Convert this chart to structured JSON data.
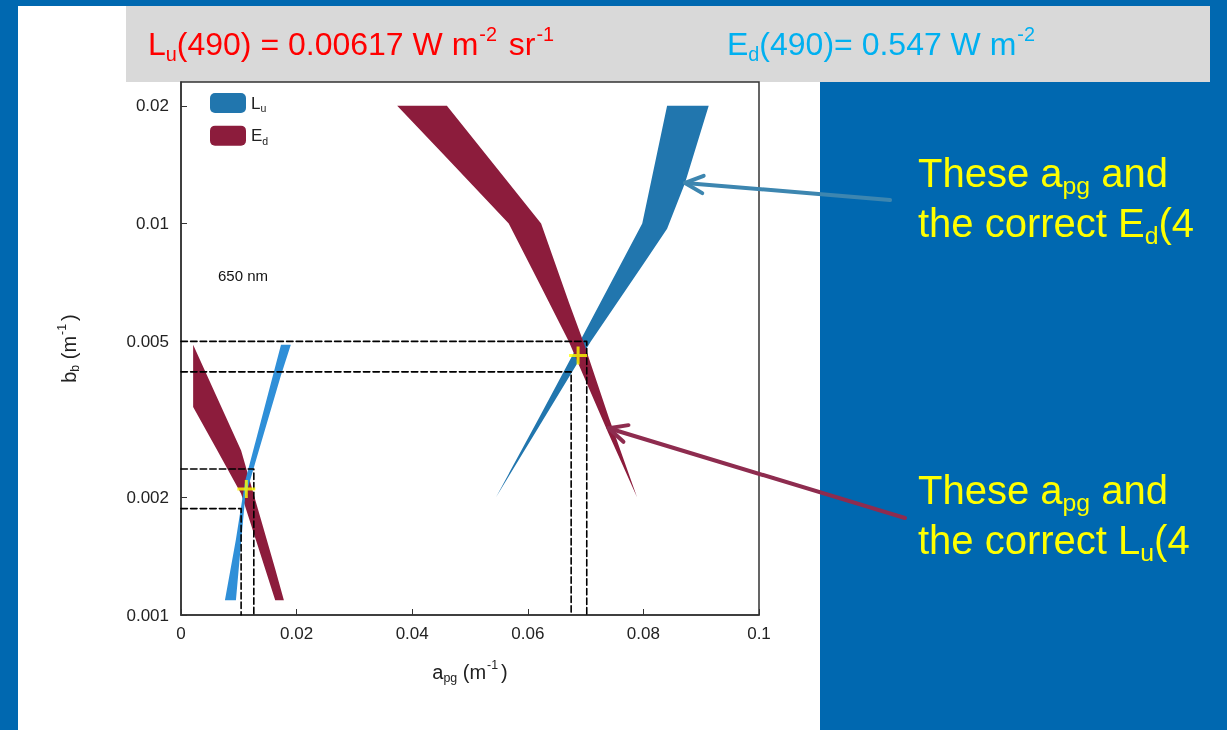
{
  "chart_data": {
    "type": "area",
    "xlabel": "a$_{pg}$ (m$^{-1}$)",
    "ylabel": "b$_{b}$ (m$^{-1}$)",
    "annotations": [
      "L$_{u}$(490) = 0.00617 W m$^{-2}$ sr$^{-1}$",
      "E$_{d}$(490)= 0.547 W m$^{-2}$",
      "650 nm",
      {
        "text": "These a$_{pg}$ and the correct E$_{d}$(4",
        "x": 0.0872,
        "y": 0.0127
      },
      {
        "text": "These a$_{pg}$ and the correct L$_{u}$(4",
        "x": 0.074,
        "y": 0.003
      }
    ],
    "xlim": [
      0,
      0.1
    ],
    "xticks": [
      0,
      0.02,
      0.04,
      0.06,
      0.08,
      0.1
    ],
    "ylim": [
      0.001,
      0.023
    ],
    "yticks": [
      0.001,
      0.002,
      0.005,
      0.01,
      0.02
    ],
    "log": true,
    "legend": "top left",
    "series": [
      {
        "name": "L$_{u}$",
        "color": "#2176ae",
        "x": [
          0.0545,
          0.062,
          0.069,
          0.0709,
          0.0798,
          0.0841,
          0.0872,
          0.0913,
          0.0841,
          0.0798,
          0.0709,
          0.069,
          0.062
        ],
        "values": [
          0.002,
          0.00304,
          0.0045,
          0.005,
          0.0078,
          0.0097,
          0.0127,
          0.02,
          0.02,
          0.01,
          0.00565,
          0.005,
          0.0032
        ]
      },
      {
        "name": "E$_{d}$",
        "color": "#8c1c3c",
        "x": [
          0.0374,
          0.046,
          0.0567,
          0.0623,
          0.0671,
          0.0696,
          0.074,
          0.0789,
          0.074,
          0.0696,
          0.0671,
          0.0623,
          0.0567,
          0.046
        ],
        "values": [
          0.02,
          0.0147,
          0.01,
          0.0069,
          0.005,
          0.0041,
          0.0029,
          0.002,
          0.0032,
          0.005,
          0.0063,
          0.01,
          0.0127,
          0.02
        ]
      },
      {
        "color": "#8c1c3c",
        "x": [
          0.0021,
          0.006,
          0.0104,
          0.0163,
          0.0178,
          0.0163,
          0.0104,
          0.006,
          0.0021
        ],
        "values": [
          0.0034,
          0.00268,
          0.00204,
          0.00109,
          0.00109,
          0.00131,
          0.00263,
          0.00366,
          0.0049
        ]
      },
      {
        "color": "#2f8fd8",
        "x": [
          0.0076,
          0.0095,
          0.0111,
          0.0173,
          0.019,
          0.0173,
          0.0111,
          0.0095
        ],
        "values": [
          0.00109,
          0.00109,
          0.002,
          0.0041,
          0.0049,
          0.0049,
          0.0022,
          0.00156
        ]
      },
      {
        "type": "line",
        "color": "#000000",
        "line_style": "dashed",
        "marker": "none",
        "x": [
          0,
          0.0702,
          0.0702
        ],
        "values": [
          0.005,
          0.005,
          0.001
        ]
      },
      {
        "type": "line",
        "color": "#000000",
        "line_style": "dashed",
        "marker": "none",
        "x": [
          0,
          0.0675,
          0.0675
        ],
        "values": [
          0.00418,
          0.00418,
          0.001
        ]
      },
      {
        "type": "line",
        "color": "#000000",
        "line_style": "dashed",
        "marker": "none",
        "x": [
          0,
          0.0126,
          0.0126
        ],
        "values": [
          0.00236,
          0.00236,
          0.001
        ]
      },
      {
        "type": "line",
        "color": "#000000",
        "line_style": "dashed",
        "marker": "none",
        "x": [
          0,
          0.0104,
          0.0104
        ],
        "values": [
          0.00187,
          0.00187,
          0.001
        ]
      },
      {
        "type": "scatter",
        "color": "#ffff00",
        "marker": "cross",
        "x": [
          0.0687,
          0.0113
        ],
        "values": [
          0.0046,
          0.0021
        ]
      }
    ]
  }
}
